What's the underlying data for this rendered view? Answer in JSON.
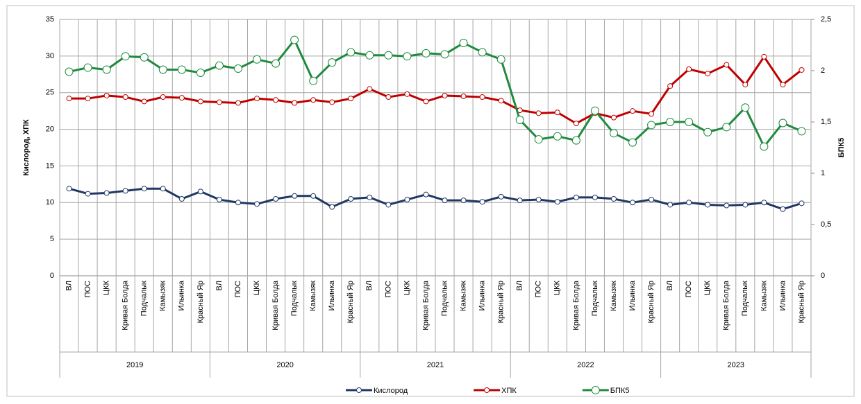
{
  "chart_data": {
    "type": "line",
    "categories": [
      "ВЛ",
      "ПОС",
      "ЦКК",
      "Кривая Болда",
      "Подчалык",
      "Камызяк",
      "Ильинка",
      "Красный Яр",
      "ВЛ",
      "ПОС",
      "ЦКК",
      "Кривая Болда",
      "Подчалык",
      "Камызяк",
      "Ильинка",
      "Красный Яр",
      "ВЛ",
      "ПОС",
      "ЦКК",
      "Кривая Болда",
      "Подчалык",
      "Камызяк",
      "Ильинка",
      "Красный Яр",
      "ВЛ",
      "ПОС",
      "ЦКК",
      "Кривая Болда",
      "Подчалык",
      "Камызяк",
      "Ильинка",
      "Красный Яр",
      "ВЛ",
      "ПОС",
      "ЦКК",
      "Кривая Болда",
      "Подчалык",
      "Камызяк",
      "Ильинка",
      "Красный Яр"
    ],
    "groups": [
      "2019",
      "2020",
      "2021",
      "2022",
      "2023"
    ],
    "ylabel": "Кислород, ХПК",
    "y2label": "БПК5",
    "ylim": [
      0,
      35
    ],
    "yticks": [
      0,
      5,
      10,
      15,
      20,
      25,
      30,
      35
    ],
    "y2lim": [
      0,
      2.5
    ],
    "y2ticks": [
      0,
      {
        "value": 0.5,
        "label": "0,5"
      },
      1,
      {
        "value": 1.5,
        "label": "1,5"
      },
      2,
      {
        "value": 2.5,
        "label": "2,5"
      }
    ],
    "grid": true,
    "legend": "bottom",
    "series": [
      {
        "name": "Кислород",
        "color": "#1f3864",
        "values": [
          11.9,
          11.2,
          11.3,
          11.6,
          11.9,
          11.9,
          10.5,
          11.5,
          10.4,
          10.0,
          9.8,
          10.5,
          10.9,
          10.9,
          9.4,
          10.5,
          10.7,
          9.7,
          10.4,
          11.1,
          10.3,
          10.3,
          10.1,
          10.8,
          10.3,
          10.4,
          10.1,
          10.7,
          10.7,
          10.5,
          10.0,
          10.4,
          9.7,
          10.0,
          9.7,
          9.6,
          9.7,
          10.0,
          9.1,
          9.9
        ]
      },
      {
        "name": "ХПК",
        "color": "#c00000",
        "values": [
          24.2,
          24.2,
          24.6,
          24.4,
          23.8,
          24.4,
          24.3,
          23.8,
          23.7,
          23.6,
          24.2,
          24.0,
          23.6,
          24.0,
          23.7,
          24.2,
          25.5,
          24.4,
          24.8,
          23.8,
          24.6,
          24.5,
          24.4,
          23.9,
          22.6,
          22.2,
          22.3,
          20.8,
          22.2,
          21.6,
          22.5,
          22.1,
          25.9,
          28.2,
          27.6,
          28.8,
          26.1,
          29.9,
          26.1,
          28.1
        ]
      },
      {
        "name": "БПК5",
        "color": "#1e8b3e",
        "axis": "y2",
        "values": [
          1.99,
          2.03,
          2.01,
          2.14,
          2.13,
          2.01,
          2.01,
          1.98,
          2.05,
          2.02,
          2.11,
          2.07,
          2.3,
          1.9,
          2.08,
          2.18,
          2.15,
          2.15,
          2.14,
          2.17,
          2.16,
          2.27,
          2.18,
          2.11,
          1.52,
          1.33,
          1.36,
          1.32,
          1.61,
          1.39,
          1.3,
          1.47,
          1.5,
          1.5,
          1.4,
          1.45,
          1.64,
          1.26,
          1.49,
          1.41
        ]
      }
    ]
  }
}
